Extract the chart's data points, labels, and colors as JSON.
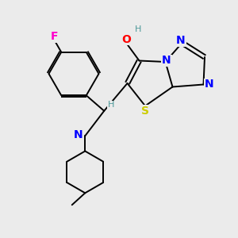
{
  "background_color": "#ebebeb",
  "atom_colors": {
    "F": "#ff00cc",
    "O": "#ff0000",
    "N": "#0000ff",
    "S": "#cccc00",
    "H_label": "#4d9999",
    "C": "#000000"
  },
  "figsize": [
    3.0,
    3.0
  ],
  "dpi": 100
}
